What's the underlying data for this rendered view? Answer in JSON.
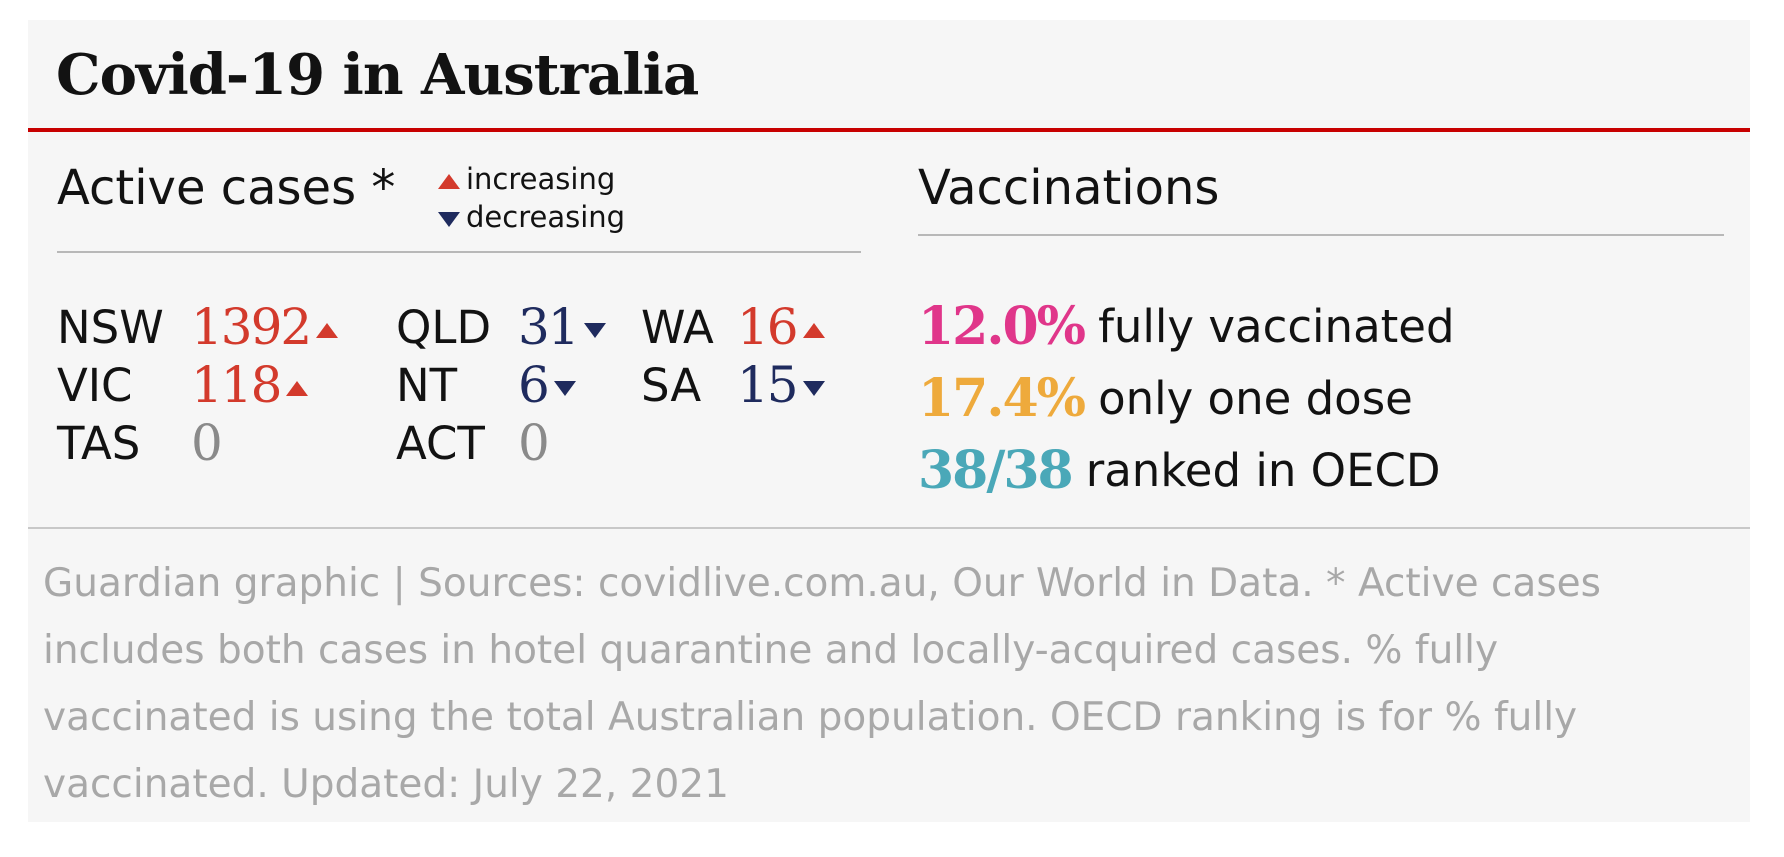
{
  "header": {
    "title": "Covid-19 in Australia"
  },
  "active_cases": {
    "title": "Active cases *",
    "legend": {
      "up": "increasing",
      "down": "decreasing"
    },
    "trend_colors": {
      "up": "#d33a2c",
      "down": "#1f2b5e",
      "flat": "#8a8a8a"
    },
    "states": [
      {
        "name": "NSW",
        "value": 1392,
        "trend": "up"
      },
      {
        "name": "QLD",
        "value": 31,
        "trend": "down"
      },
      {
        "name": "WA",
        "value": 16,
        "trend": "up"
      },
      {
        "name": "VIC",
        "value": 118,
        "trend": "up"
      },
      {
        "name": "NT",
        "value": 6,
        "trend": "down"
      },
      {
        "name": "SA",
        "value": 15,
        "trend": "down"
      },
      {
        "name": "TAS",
        "value": 0,
        "trend": "flat"
      },
      {
        "name": "ACT",
        "value": 0,
        "trend": "flat"
      }
    ]
  },
  "vaccinations": {
    "title": "Vaccinations",
    "items": [
      {
        "value": "12.0%",
        "label": "fully vaccinated",
        "color": "#e0368a"
      },
      {
        "value": "17.4%",
        "label": "only one dose",
        "color": "#eeaa3c"
      },
      {
        "value": "38/38",
        "label": "ranked in OECD",
        "color": "#4aa8b8"
      }
    ]
  },
  "footer": {
    "text": "Guardian graphic | Sources: covidlive.com.au, Our World in Data. * Active cases includes both cases in hotel quarantine and locally-acquired cases. % fully vaccinated is using the total Australian population. OECD ranking is for % fully vaccinated. Updated: July 22, 2021"
  }
}
